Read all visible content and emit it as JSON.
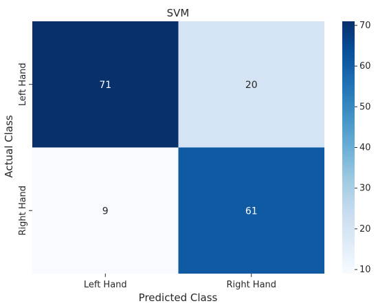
{
  "chart_data": {
    "type": "heatmap",
    "title": "SVM",
    "xlabel": "Predicted Class",
    "ylabel": "Actual Class",
    "x_categories": [
      "Left Hand",
      "Right Hand"
    ],
    "y_categories": [
      "Left Hand",
      "Right Hand"
    ],
    "values": [
      [
        71,
        20
      ],
      [
        9,
        61
      ]
    ],
    "colormap": "Blues",
    "color_range": [
      9,
      71
    ],
    "colorbar_ticks": [
      10,
      20,
      30,
      40,
      50,
      60,
      70
    ],
    "colorbar_tick_labels": [
      "10",
      "20",
      "30",
      "40",
      "50",
      "60",
      "70"
    ],
    "cell_labels": [
      [
        "71",
        "20"
      ],
      [
        "9",
        "61"
      ]
    ]
  }
}
